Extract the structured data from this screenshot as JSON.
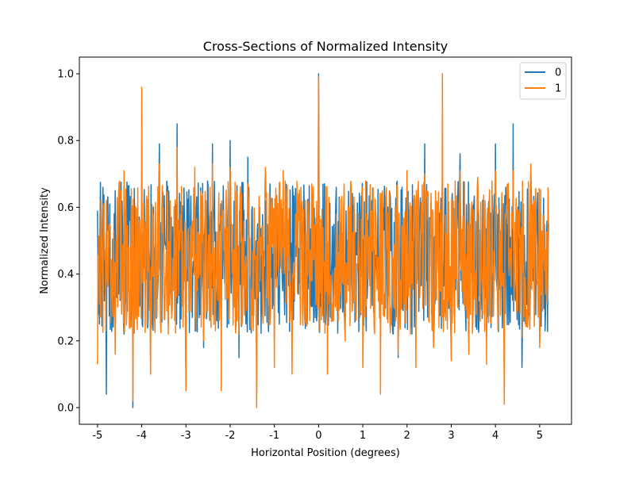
{
  "chart_data": {
    "type": "line",
    "title": "Cross-Sections of Normalized Intensity",
    "xlabel": "Horizontal Position (degrees)",
    "ylabel": "Normalized Intensity",
    "xlim": [
      -5.41,
      5.72
    ],
    "ylim": [
      -0.05,
      1.05
    ],
    "xticks": [
      -5,
      -4,
      -3,
      -2,
      -1,
      0,
      1,
      2,
      3,
      4,
      5
    ],
    "xtick_labels": [
      "-5",
      "-4",
      "-3",
      "-2",
      "-1",
      "0",
      "1",
      "2",
      "3",
      "4",
      "5"
    ],
    "yticks": [
      0.0,
      0.2,
      0.4,
      0.6,
      0.8,
      1.0
    ],
    "ytick_labels": [
      "0.0",
      "0.2",
      "0.4",
      "0.6",
      "0.8",
      "1.0"
    ],
    "grid": false,
    "legend_position": "top-right",
    "x_range_data": [
      -5.0,
      5.22
    ],
    "series": [
      {
        "name": "0",
        "color": "#1f77b4",
        "x": [
          -5.0,
          -4.8,
          -4.6,
          -4.4,
          -4.2,
          -4.0,
          -3.8,
          -3.6,
          -3.4,
          -3.2,
          -3.0,
          -2.8,
          -2.6,
          -2.4,
          -2.2,
          -2.0,
          -1.8,
          -1.6,
          -1.4,
          -1.2,
          -1.0,
          -0.8,
          -0.6,
          -0.4,
          -0.2,
          0.0,
          0.2,
          0.4,
          0.6,
          0.8,
          1.0,
          1.2,
          1.4,
          1.6,
          1.8,
          2.0,
          2.2,
          2.4,
          2.6,
          2.8,
          3.0,
          3.2,
          3.4,
          3.6,
          3.8,
          4.0,
          4.2,
          4.4,
          4.6,
          4.8,
          5.0,
          5.2
        ],
        "values": [
          0.59,
          0.04,
          0.65,
          0.22,
          0.0,
          0.7,
          0.15,
          0.79,
          0.25,
          0.85,
          0.2,
          0.66,
          0.18,
          0.79,
          0.3,
          0.8,
          0.15,
          0.75,
          0.04,
          0.62,
          0.2,
          0.56,
          0.28,
          0.61,
          0.3,
          1.0,
          0.28,
          0.66,
          0.22,
          0.6,
          0.25,
          0.62,
          0.19,
          0.58,
          0.15,
          0.63,
          0.21,
          0.79,
          0.19,
          0.69,
          0.19,
          0.76,
          0.26,
          0.6,
          0.21,
          0.79,
          0.2,
          0.85,
          0.12,
          0.71,
          0.2,
          0.55
        ]
      },
      {
        "name": "1",
        "color": "#ff7f0e",
        "x": [
          -5.0,
          -4.8,
          -4.6,
          -4.4,
          -4.2,
          -4.0,
          -3.8,
          -3.6,
          -3.4,
          -3.2,
          -3.0,
          -2.8,
          -2.6,
          -2.4,
          -2.2,
          -2.0,
          -1.8,
          -1.6,
          -1.4,
          -1.2,
          -1.0,
          -0.8,
          -0.6,
          -0.4,
          -0.2,
          0.0,
          0.2,
          0.4,
          0.6,
          0.8,
          1.0,
          1.2,
          1.4,
          1.6,
          1.8,
          2.0,
          2.2,
          2.4,
          2.6,
          2.8,
          3.0,
          3.2,
          3.4,
          3.6,
          3.8,
          4.0,
          4.2,
          4.4,
          4.6,
          4.8,
          5.0,
          5.2
        ],
        "values": [
          0.13,
          0.62,
          0.16,
          0.71,
          0.02,
          0.96,
          0.1,
          0.73,
          0.22,
          0.78,
          0.05,
          0.72,
          0.2,
          0.73,
          0.05,
          0.72,
          0.22,
          0.67,
          0.0,
          0.72,
          0.12,
          0.71,
          0.1,
          0.66,
          0.26,
          0.99,
          0.1,
          0.58,
          0.2,
          0.63,
          0.12,
          0.59,
          0.04,
          0.65,
          0.16,
          0.71,
          0.12,
          0.7,
          0.18,
          1.0,
          0.14,
          0.71,
          0.16,
          0.69,
          0.13,
          0.71,
          0.01,
          0.71,
          0.21,
          0.73,
          0.18,
          0.55
        ]
      }
    ]
  }
}
